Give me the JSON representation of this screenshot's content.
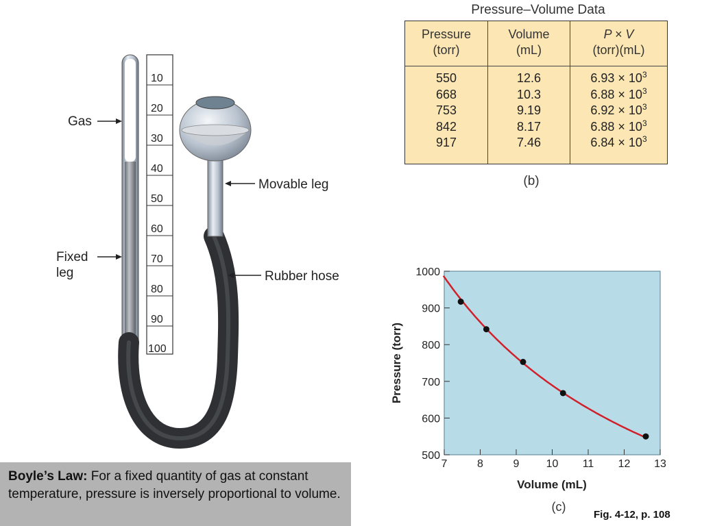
{
  "apparatus": {
    "labels": {
      "gas": "Gas",
      "fixed_leg": "Fixed",
      "fixed_leg_2": "leg",
      "movable_leg": "Movable leg",
      "rubber_hose": "Rubber hose"
    },
    "scale": [
      "10",
      "20",
      "30",
      "40",
      "50",
      "60",
      "70",
      "80",
      "90",
      "100"
    ]
  },
  "table": {
    "title": "Pressure–Volume Data",
    "headers": [
      {
        "line1": "Pressure",
        "line2": "(torr)"
      },
      {
        "line1": "Volume",
        "line2": "(mL)"
      },
      {
        "line1": "P × V",
        "line2": "(torr)(mL)"
      }
    ],
    "exp_base": "× 10",
    "exp_power": "3",
    "rows": [
      {
        "pressure": "550",
        "volume": "12.6",
        "pv": "6.93"
      },
      {
        "pressure": "668",
        "volume": "10.3",
        "pv": "6.88"
      },
      {
        "pressure": "753",
        "volume": "9.19",
        "pv": "6.92"
      },
      {
        "pressure": "842",
        "volume": "8.17",
        "pv": "6.88"
      },
      {
        "pressure": "917",
        "volume": "7.46",
        "pv": "6.84"
      }
    ],
    "caption": "(b)"
  },
  "chart_data": {
    "type": "scatter",
    "xlabel": "Volume (mL)",
    "ylabel": "Pressure (torr)",
    "xlim": [
      7,
      13
    ],
    "ylim": [
      500,
      1000
    ],
    "xticks": [
      7,
      8,
      9,
      10,
      11,
      12,
      13
    ],
    "yticks": [
      500,
      600,
      700,
      800,
      900,
      1000
    ],
    "points": [
      {
        "x": 12.6,
        "y": 550
      },
      {
        "x": 10.3,
        "y": 668
      },
      {
        "x": 9.19,
        "y": 753
      },
      {
        "x": 8.17,
        "y": 842
      },
      {
        "x": 7.46,
        "y": 917
      }
    ],
    "curve": "hyperbola PV = constant",
    "colors": {
      "background": "#b8dbe8",
      "curve": "#d0202a",
      "points": "#111111"
    },
    "caption": "(c)"
  },
  "law": {
    "title": "Boyle’s Law:",
    "text": "For a fixed quantity of gas at constant temperature, pressure is inversely proportional  to volume."
  },
  "figure_ref": "Fig. 4-12, p. 108"
}
